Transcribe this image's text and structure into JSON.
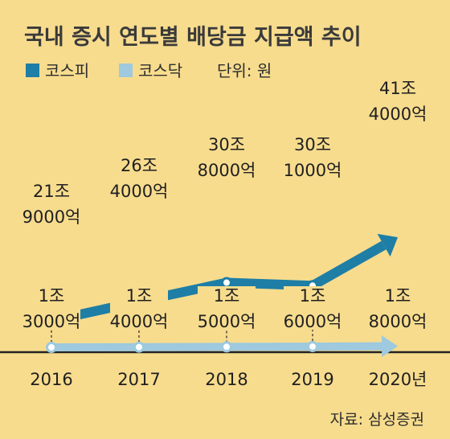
{
  "title": "국내 증시 연도별 배당금 지급액 추이",
  "unit_label": "단위: 원",
  "source": "자료: 삼성증권",
  "colors": {
    "kospi": "#1e7ea6",
    "kosdaq": "#9ec9de",
    "background": "#f7dc8e"
  },
  "chart_data": {
    "type": "line",
    "title": "국내 증시 연도별 배당금 지급액 추이",
    "categories": [
      "2016",
      "2017",
      "2018",
      "2019",
      "2020년"
    ],
    "series": [
      {
        "name": "코스피",
        "values": [
          219000,
          264000,
          308000,
          301000,
          414000
        ],
        "labels": [
          [
            "21조",
            "9000억"
          ],
          [
            "26조",
            "4000억"
          ],
          [
            "30조",
            "8000억"
          ],
          [
            "30조",
            "1000억"
          ],
          [
            "41조",
            "4000억"
          ]
        ]
      },
      {
        "name": "코스닥",
        "values": [
          13000,
          14000,
          15000,
          16000,
          18000
        ],
        "labels": [
          [
            "1조",
            "3000억"
          ],
          [
            "1조",
            "4000억"
          ],
          [
            "1조",
            "5000억"
          ],
          [
            "1조",
            "6000억"
          ],
          [
            "1조",
            "8000억"
          ]
        ]
      }
    ],
    "unit": "억원",
    "legend": "top-left",
    "grid": false
  }
}
